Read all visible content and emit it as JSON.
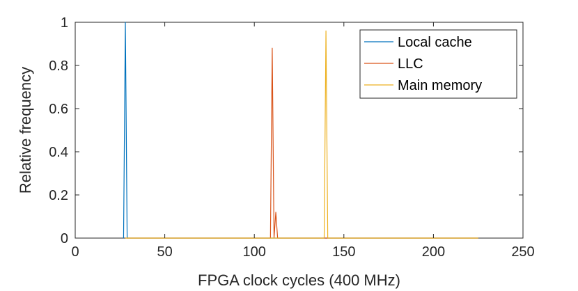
{
  "chart_data": {
    "type": "line",
    "title": "",
    "xlabel": "FPGA clock cycles (400 MHz)",
    "ylabel": "Relative frequency",
    "xlim": [
      0,
      250
    ],
    "ylim": [
      0,
      1
    ],
    "xticks": [
      0,
      50,
      100,
      150,
      200,
      250
    ],
    "yticks": [
      0,
      0.2,
      0.4,
      0.6,
      0.8,
      1
    ],
    "xtick_labels": [
      "0",
      "50",
      "100",
      "150",
      "200",
      "250"
    ],
    "ytick_labels": [
      "0",
      "0.2",
      "0.4",
      "0.6",
      "0.8",
      "1"
    ],
    "grid": false,
    "legend_position": "top-right",
    "series": [
      {
        "name": "Local cache",
        "color": "#0072BD",
        "x": [
          27,
          28,
          29,
          30,
          40,
          60,
          80,
          100,
          120,
          140,
          160,
          180,
          200,
          225
        ],
        "y": [
          0,
          1.0,
          0,
          0,
          0,
          0,
          0,
          0,
          0,
          0,
          0,
          0,
          0,
          0
        ]
      },
      {
        "name": "LLC",
        "color": "#D95319",
        "x": [
          28,
          60,
          100,
          109,
          110,
          111,
          112,
          113,
          114,
          120,
          140,
          160,
          180,
          200,
          225
        ],
        "y": [
          0,
          0,
          0,
          0,
          0.88,
          0,
          0.12,
          0,
          0,
          0,
          0,
          0,
          0,
          0,
          0
        ]
      },
      {
        "name": "Main memory",
        "color": "#EDB120",
        "x": [
          28,
          60,
          100,
          130,
          138,
          139,
          140,
          141,
          142,
          150,
          165,
          180,
          200,
          215,
          225
        ],
        "y": [
          0,
          0,
          0,
          0,
          0,
          0,
          0.96,
          0,
          0,
          0,
          0,
          0,
          0,
          0,
          0
        ]
      }
    ]
  }
}
